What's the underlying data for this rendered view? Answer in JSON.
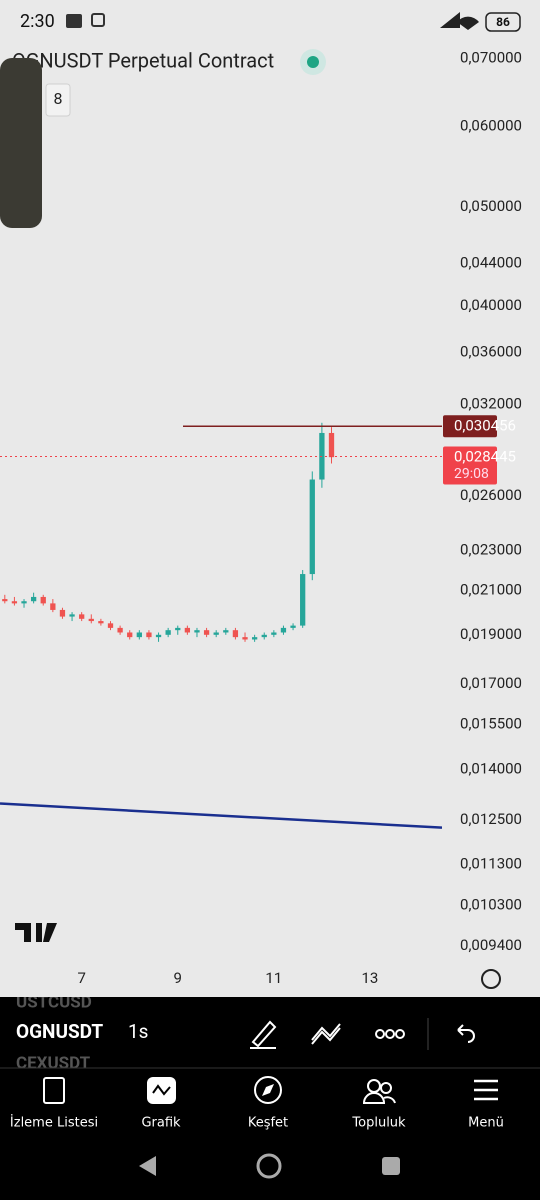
{
  "status_bar": {
    "time": "2:30",
    "battery": "86"
  },
  "header": {
    "title": "OGNUSDT Perpetual Contract",
    "badge": "8"
  },
  "chart_data": {
    "type": "candlestick",
    "log_scale": true,
    "up_color": "#26a69a",
    "down_color": "#ef5350",
    "xlim": [
      5.3,
      14.5
    ],
    "xticks": [
      7,
      9,
      11,
      13
    ],
    "ylim": [
      0.009,
      0.073
    ],
    "yticks": [
      {
        "value": 0.07,
        "label": "0,070000"
      },
      {
        "value": 0.06,
        "label": "0,060000"
      },
      {
        "value": 0.05,
        "label": "0,050000"
      },
      {
        "value": 0.044,
        "label": "0,044000"
      },
      {
        "value": 0.04,
        "label": "0,040000"
      },
      {
        "value": 0.036,
        "label": "0,036000"
      },
      {
        "value": 0.032,
        "label": "0,032000"
      },
      {
        "value": 0.026,
        "label": "0,026000"
      },
      {
        "value": 0.023,
        "label": "0,023000"
      },
      {
        "value": 0.021,
        "label": "0,021000"
      },
      {
        "value": 0.019,
        "label": "0,019000"
      },
      {
        "value": 0.017,
        "label": "0,017000"
      },
      {
        "value": 0.0155,
        "label": "0,015500"
      },
      {
        "value": 0.014,
        "label": "0,014000"
      },
      {
        "value": 0.0125,
        "label": "0,012500"
      },
      {
        "value": 0.0113,
        "label": "0,011300"
      },
      {
        "value": 0.0103,
        "label": "0,010300"
      },
      {
        "value": 0.0094,
        "label": "0,009400"
      }
    ],
    "x": [
      5.4,
      5.6,
      5.8,
      6.0,
      6.2,
      6.4,
      6.6,
      6.8,
      7.0,
      7.2,
      7.4,
      7.6,
      7.8,
      8.0,
      8.2,
      8.4,
      8.6,
      8.8,
      9.0,
      9.2,
      9.4,
      9.6,
      9.8,
      10.0,
      10.2,
      10.4,
      10.6,
      10.8,
      11.0,
      11.2,
      11.4,
      11.6,
      11.8,
      12.0,
      12.2
    ],
    "open": [
      0.0206,
      0.0205,
      0.0204,
      0.0205,
      0.0207,
      0.0204,
      0.0201,
      0.0198,
      0.0199,
      0.0197,
      0.0196,
      0.0195,
      0.0193,
      0.0191,
      0.0189,
      0.0191,
      0.0189,
      0.019,
      0.0192,
      0.0193,
      0.0191,
      0.0192,
      0.019,
      0.0191,
      0.0192,
      0.0189,
      0.0188,
      0.0189,
      0.019,
      0.0191,
      0.0193,
      0.0194,
      0.0218,
      0.027,
      0.03
    ],
    "high": [
      0.0208,
      0.0207,
      0.0206,
      0.0209,
      0.0208,
      0.0206,
      0.0202,
      0.02,
      0.02,
      0.0199,
      0.0197,
      0.0196,
      0.0194,
      0.0192,
      0.0192,
      0.0192,
      0.0191,
      0.0193,
      0.0194,
      0.0194,
      0.0193,
      0.0193,
      0.0192,
      0.0193,
      0.0193,
      0.0191,
      0.019,
      0.0191,
      0.0192,
      0.0194,
      0.0195,
      0.022,
      0.0275,
      0.0307,
      0.0304
    ],
    "low": [
      0.0204,
      0.0203,
      0.0202,
      0.0204,
      0.0203,
      0.02,
      0.0197,
      0.0196,
      0.0196,
      0.0195,
      0.0194,
      0.0192,
      0.019,
      0.0188,
      0.0188,
      0.0188,
      0.0187,
      0.0189,
      0.019,
      0.019,
      0.0189,
      0.0189,
      0.0189,
      0.019,
      0.0188,
      0.0187,
      0.0187,
      0.0188,
      0.0189,
      0.019,
      0.0192,
      0.0193,
      0.0215,
      0.0265,
      0.028
    ],
    "close": [
      0.0205,
      0.0204,
      0.0205,
      0.0207,
      0.0204,
      0.0201,
      0.0198,
      0.0199,
      0.0197,
      0.0196,
      0.0195,
      0.0193,
      0.0191,
      0.0189,
      0.0191,
      0.0189,
      0.019,
      0.0192,
      0.0193,
      0.0191,
      0.0192,
      0.019,
      0.0191,
      0.0192,
      0.0189,
      0.0188,
      0.0189,
      0.019,
      0.0191,
      0.0193,
      0.0194,
      0.0218,
      0.027,
      0.03,
      0.0284
    ],
    "trendline": {
      "color": "#1a2f8f",
      "x": [
        5.3,
        14.5
      ],
      "values": [
        0.01297,
        0.01228
      ]
    },
    "price_lines": [
      {
        "value": 0.030456,
        "label": "0,030456",
        "color": "#7e1f1f"
      },
      {
        "value": 0.028445,
        "label": "0,028445",
        "countdown": "29:08",
        "color": "#f0424a"
      }
    ]
  },
  "toolbar": {
    "symbol": "OGNUSDT",
    "interval": "1s",
    "ghost_above": "USTCUSD",
    "ghost_below": "CEXUSDT"
  },
  "nav": [
    "İzleme Listesi",
    "Grafik",
    "Keşfet",
    "Topluluk",
    "Menü"
  ]
}
